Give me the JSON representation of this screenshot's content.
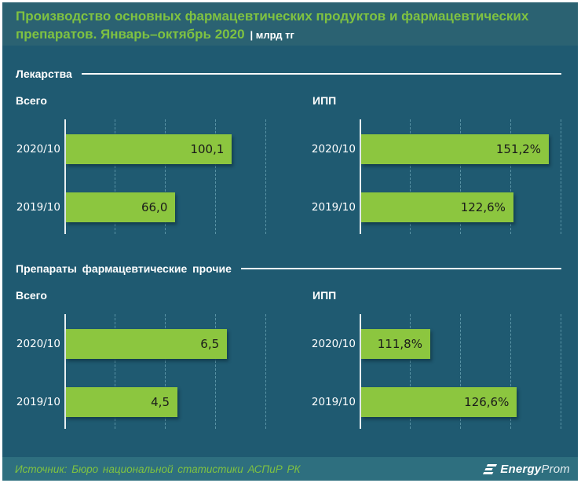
{
  "header": {
    "title_line1": "Производство основных фармацевтических продуктов и фармацевтических",
    "title_line2": "препаратов. Январь–октябрь 2020",
    "unit": "| млрд тг"
  },
  "sections": [
    {
      "title": "Лекарства"
    },
    {
      "title": "Препараты фармацевтические прочие"
    }
  ],
  "chart_data": [
    {
      "type": "bar",
      "orientation": "horizontal",
      "section": "Лекарства",
      "title": "Всего",
      "unit": "млрд тг",
      "categories": [
        "2020/10",
        "2019/10"
      ],
      "values": [
        100.1,
        66.0
      ],
      "value_labels": [
        "100,1",
        "66,0"
      ],
      "axis": {
        "min": 0,
        "max": 124
      },
      "grid": "dashed vertical, no tick labels",
      "legend": "none"
    },
    {
      "type": "bar",
      "orientation": "horizontal",
      "section": "Лекарства",
      "title": "ИПП",
      "unit": "%",
      "categories": [
        "2020/10",
        "2019/10"
      ],
      "values": [
        151.2,
        122.6
      ],
      "value_labels": [
        "151,2%",
        "122,6%"
      ],
      "axis": {
        "min": 0,
        "max": 165
      },
      "grid": "dashed vertical, no tick labels",
      "legend": "none"
    },
    {
      "type": "bar",
      "orientation": "horizontal",
      "section": "Препараты фармацевтические прочие",
      "title": "Всего",
      "unit": "млрд тг",
      "categories": [
        "2020/10",
        "2019/10"
      ],
      "values": [
        6.5,
        4.5
      ],
      "value_labels": [
        "6,5",
        "4,5"
      ],
      "axis": {
        "min": 0,
        "max": 8.3
      },
      "grid": "dashed vertical, no tick labels",
      "legend": "none"
    },
    {
      "type": "bar",
      "orientation": "horizontal",
      "section": "Препараты фармацевтические прочие",
      "title": "ИПП",
      "unit": "%",
      "categories": [
        "2020/10",
        "2019/10"
      ],
      "values": [
        111.8,
        126.6
      ],
      "value_labels": [
        "111,8%",
        "126,6%"
      ],
      "axis": {
        "min": 100,
        "max": 135
      },
      "grid": "dashed vertical, no tick labels",
      "legend": "none"
    }
  ],
  "footer": {
    "source": "Источник: Бюро национальной статистики АСПиР РК",
    "logo": {
      "bold": "Energy",
      "light": "Prom"
    }
  },
  "colors": {
    "background": "#1f5a71",
    "header_band": "#2b6272",
    "footer_band": "#2e6f7f",
    "bar": "#8cc63f",
    "title_green": "#7fc241",
    "value_text": "#1a1a1a"
  }
}
